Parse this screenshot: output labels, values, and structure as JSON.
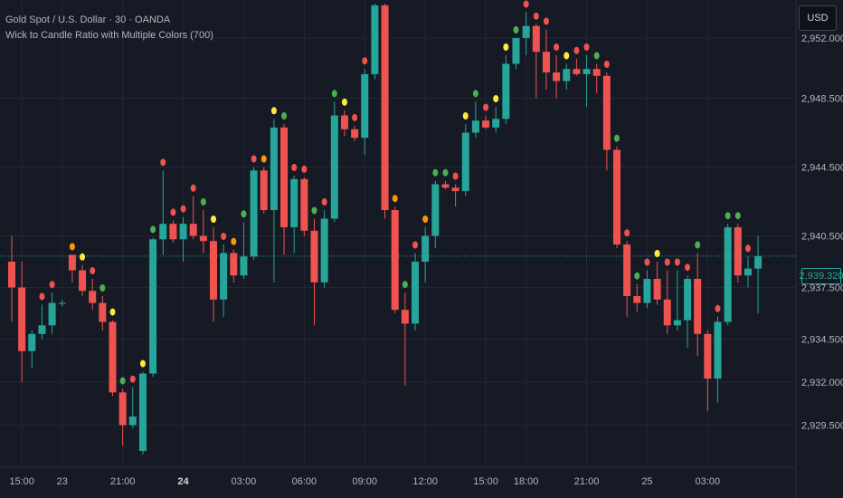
{
  "header": {
    "symbol_line": "Gold Spot / U.S. Dollar · 30 · OANDA",
    "indicator_line": "Wick to Candle Ratio with Multiple Colors (700)"
  },
  "currency_button": "USD",
  "last_price": "2,939.320",
  "colors": {
    "background": "#161a25",
    "grid": "#232734",
    "bull": "#26a69a",
    "bear": "#ef5350",
    "dot_green": "#4caf50",
    "dot_yellow": "#ffeb3b",
    "dot_orange": "#ff9800",
    "dot_red": "#ef5350",
    "axis_text": "#b2b5be"
  },
  "chart_data": {
    "type": "candlestick",
    "instrument": "Gold Spot / U.S. Dollar",
    "timeframe": "30",
    "source": "OANDA",
    "y_axis": {
      "ticks": [
        2929.5,
        2932.0,
        2934.5,
        2937.5,
        2940.5,
        2944.5,
        2948.5,
        2952.0
      ],
      "tick_labels": [
        "2,929.500",
        "2,932.000",
        "2,934.500",
        "2,937.500",
        "2,940.500",
        "2,944.500",
        "2,948.500",
        "2,952.000"
      ],
      "range": [
        2928.0,
        2954.0
      ]
    },
    "x_axis": {
      "labels": [
        {
          "text": "15:00",
          "bar": 1,
          "bold": false
        },
        {
          "text": "23",
          "bar": 5,
          "bold": false
        },
        {
          "text": "21:00",
          "bar": 11,
          "bold": false
        },
        {
          "text": "24",
          "bar": 17,
          "bold": true
        },
        {
          "text": "03:00",
          "bar": 23,
          "bold": false
        },
        {
          "text": "06:00",
          "bar": 29,
          "bold": false
        },
        {
          "text": "09:00",
          "bar": 35,
          "bold": false
        },
        {
          "text": "12:00",
          "bar": 41,
          "bold": false
        },
        {
          "text": "15:00",
          "bar": 47,
          "bold": false
        },
        {
          "text": "18:00",
          "bar": 51,
          "bold": false
        },
        {
          "text": "21:00",
          "bar": 57,
          "bold": false
        },
        {
          "text": "25",
          "bar": 63,
          "bold": false
        },
        {
          "text": "03:00",
          "bar": 69,
          "bold": false
        }
      ]
    },
    "last_price": 2939.32,
    "candles": [
      {
        "o": 2939.0,
        "h": 2940.5,
        "l": 2935.5,
        "c": 2937.5,
        "dot": "none"
      },
      {
        "o": 2937.5,
        "h": 2939.0,
        "l": 2932.0,
        "c": 2933.8,
        "dot": "none"
      },
      {
        "o": 2933.8,
        "h": 2935.0,
        "l": 2932.8,
        "c": 2934.8,
        "dot": "none"
      },
      {
        "o": 2934.8,
        "h": 2936.5,
        "l": 2934.5,
        "c": 2935.3,
        "dot": "red"
      },
      {
        "o": 2935.3,
        "h": 2937.2,
        "l": 2934.8,
        "c": 2936.6,
        "dot": "red"
      },
      {
        "o": 2936.6,
        "h": 2936.8,
        "l": 2936.4,
        "c": 2936.6,
        "dot": "none"
      },
      {
        "o": 2939.4,
        "h": 2939.4,
        "l": 2937.8,
        "c": 2938.5,
        "dot": "orange"
      },
      {
        "o": 2938.5,
        "h": 2938.8,
        "l": 2937.0,
        "c": 2937.3,
        "dot": "yellow"
      },
      {
        "o": 2937.3,
        "h": 2938.0,
        "l": 2936.2,
        "c": 2936.6,
        "dot": "red"
      },
      {
        "o": 2936.6,
        "h": 2937.0,
        "l": 2935.0,
        "c": 2935.5,
        "dot": "green"
      },
      {
        "o": 2935.5,
        "h": 2935.6,
        "l": 2931.2,
        "c": 2931.4,
        "dot": "yellow"
      },
      {
        "o": 2931.4,
        "h": 2931.6,
        "l": 2928.3,
        "c": 2929.5,
        "dot": "green"
      },
      {
        "o": 2929.5,
        "h": 2931.7,
        "l": 2929.3,
        "c": 2930.0,
        "dot": "red"
      },
      {
        "o": 2928.0,
        "h": 2932.6,
        "l": 2927.8,
        "c": 2932.5,
        "dot": "yellow"
      },
      {
        "o": 2932.5,
        "h": 2940.4,
        "l": 2932.3,
        "c": 2940.3,
        "dot": "green"
      },
      {
        "o": 2940.3,
        "h": 2944.3,
        "l": 2939.4,
        "c": 2941.2,
        "dot": "red"
      },
      {
        "o": 2941.2,
        "h": 2941.4,
        "l": 2940.1,
        "c": 2940.3,
        "dot": "red"
      },
      {
        "o": 2940.3,
        "h": 2941.6,
        "l": 2939.0,
        "c": 2941.2,
        "dot": "red"
      },
      {
        "o": 2941.2,
        "h": 2942.8,
        "l": 2940.3,
        "c": 2940.5,
        "dot": "red"
      },
      {
        "o": 2940.5,
        "h": 2942.0,
        "l": 2939.5,
        "c": 2940.2,
        "dot": "green"
      },
      {
        "o": 2940.2,
        "h": 2941.0,
        "l": 2935.5,
        "c": 2936.8,
        "dot": "yellow"
      },
      {
        "o": 2936.8,
        "h": 2940.0,
        "l": 2935.8,
        "c": 2939.5,
        "dot": "red"
      },
      {
        "o": 2939.5,
        "h": 2939.7,
        "l": 2937.8,
        "c": 2938.2,
        "dot": "orange"
      },
      {
        "o": 2938.2,
        "h": 2941.3,
        "l": 2938.0,
        "c": 2939.3,
        "dot": "green"
      },
      {
        "o": 2939.3,
        "h": 2944.5,
        "l": 2939.1,
        "c": 2944.3,
        "dot": "red"
      },
      {
        "o": 2944.3,
        "h": 2944.5,
        "l": 2941.8,
        "c": 2942.0,
        "dot": "orange"
      },
      {
        "o": 2942.0,
        "h": 2947.3,
        "l": 2937.8,
        "c": 2946.8,
        "dot": "yellow"
      },
      {
        "o": 2946.8,
        "h": 2947.0,
        "l": 2939.4,
        "c": 2941.0,
        "dot": "green"
      },
      {
        "o": 2941.0,
        "h": 2944.0,
        "l": 2939.5,
        "c": 2943.8,
        "dot": "red"
      },
      {
        "o": 2943.8,
        "h": 2943.9,
        "l": 2940.5,
        "c": 2940.8,
        "dot": "red"
      },
      {
        "o": 2940.8,
        "h": 2941.5,
        "l": 2935.3,
        "c": 2937.8,
        "dot": "green"
      },
      {
        "o": 2937.8,
        "h": 2942.0,
        "l": 2937.5,
        "c": 2941.5,
        "dot": "red"
      },
      {
        "o": 2941.5,
        "h": 2948.3,
        "l": 2941.3,
        "c": 2947.5,
        "dot": "green"
      },
      {
        "o": 2947.5,
        "h": 2947.8,
        "l": 2946.3,
        "c": 2946.7,
        "dot": "yellow"
      },
      {
        "o": 2946.7,
        "h": 2946.9,
        "l": 2946.0,
        "c": 2946.2,
        "dot": "red"
      },
      {
        "o": 2946.2,
        "h": 2950.2,
        "l": 2945.2,
        "c": 2949.9,
        "dot": "red"
      },
      {
        "o": 2949.9,
        "h": 2954.0,
        "l": 2949.6,
        "c": 2953.9,
        "dot": "yellow"
      },
      {
        "o": 2953.9,
        "h": 2954.0,
        "l": 2941.5,
        "c": 2942.0,
        "dot": "none"
      },
      {
        "o": 2942.0,
        "h": 2942.2,
        "l": 2936.0,
        "c": 2936.2,
        "dot": "orange"
      },
      {
        "o": 2936.2,
        "h": 2937.2,
        "l": 2931.8,
        "c": 2935.4,
        "dot": "green"
      },
      {
        "o": 2935.4,
        "h": 2939.5,
        "l": 2935.0,
        "c": 2939.0,
        "dot": "red"
      },
      {
        "o": 2939.0,
        "h": 2941.0,
        "l": 2937.8,
        "c": 2940.5,
        "dot": "orange"
      },
      {
        "o": 2940.5,
        "h": 2943.7,
        "l": 2939.8,
        "c": 2943.5,
        "dot": "green"
      },
      {
        "o": 2943.5,
        "h": 2943.7,
        "l": 2943.2,
        "c": 2943.3,
        "dot": "green"
      },
      {
        "o": 2943.3,
        "h": 2943.5,
        "l": 2942.2,
        "c": 2943.1,
        "dot": "red"
      },
      {
        "o": 2943.1,
        "h": 2947.0,
        "l": 2942.8,
        "c": 2946.5,
        "dot": "yellow"
      },
      {
        "o": 2946.5,
        "h": 2948.3,
        "l": 2946.2,
        "c": 2947.2,
        "dot": "green"
      },
      {
        "o": 2947.2,
        "h": 2947.5,
        "l": 2946.7,
        "c": 2946.8,
        "dot": "red"
      },
      {
        "o": 2946.8,
        "h": 2948.0,
        "l": 2946.5,
        "c": 2947.3,
        "dot": "yellow"
      },
      {
        "o": 2947.3,
        "h": 2951.0,
        "l": 2947.0,
        "c": 2950.5,
        "dot": "yellow"
      },
      {
        "o": 2950.5,
        "h": 2952.0,
        "l": 2950.2,
        "c": 2952.0,
        "dot": "green"
      },
      {
        "o": 2952.0,
        "h": 2953.5,
        "l": 2951.0,
        "c": 2952.7,
        "dot": "red"
      },
      {
        "o": 2952.7,
        "h": 2952.8,
        "l": 2948.5,
        "c": 2951.2,
        "dot": "red"
      },
      {
        "o": 2951.2,
        "h": 2952.5,
        "l": 2949.0,
        "c": 2950.0,
        "dot": "red"
      },
      {
        "o": 2950.0,
        "h": 2951.0,
        "l": 2948.5,
        "c": 2949.5,
        "dot": "red"
      },
      {
        "o": 2949.5,
        "h": 2950.5,
        "l": 2949.0,
        "c": 2950.2,
        "dot": "yellow"
      },
      {
        "o": 2950.2,
        "h": 2950.8,
        "l": 2949.8,
        "c": 2949.9,
        "dot": "red"
      },
      {
        "o": 2949.9,
        "h": 2951.0,
        "l": 2948.0,
        "c": 2950.2,
        "dot": "red"
      },
      {
        "o": 2950.2,
        "h": 2950.5,
        "l": 2948.8,
        "c": 2949.8,
        "dot": "green"
      },
      {
        "o": 2949.8,
        "h": 2950.0,
        "l": 2944.3,
        "c": 2945.5,
        "dot": "red"
      },
      {
        "o": 2945.5,
        "h": 2945.7,
        "l": 2939.8,
        "c": 2940.0,
        "dot": "green"
      },
      {
        "o": 2940.0,
        "h": 2940.2,
        "l": 2935.8,
        "c": 2937.0,
        "dot": "red"
      },
      {
        "o": 2937.0,
        "h": 2937.7,
        "l": 2936.1,
        "c": 2936.6,
        "dot": "green"
      },
      {
        "o": 2936.6,
        "h": 2938.5,
        "l": 2936.3,
        "c": 2938.0,
        "dot": "red"
      },
      {
        "o": 2938.0,
        "h": 2939.0,
        "l": 2936.5,
        "c": 2936.8,
        "dot": "yellow"
      },
      {
        "o": 2936.8,
        "h": 2938.5,
        "l": 2934.8,
        "c": 2935.3,
        "dot": "red"
      },
      {
        "o": 2935.3,
        "h": 2938.5,
        "l": 2935.0,
        "c": 2935.6,
        "dot": "red"
      },
      {
        "o": 2935.6,
        "h": 2938.2,
        "l": 2934.0,
        "c": 2938.0,
        "dot": "red"
      },
      {
        "o": 2938.0,
        "h": 2939.5,
        "l": 2933.5,
        "c": 2934.8,
        "dot": "green"
      },
      {
        "o": 2934.8,
        "h": 2935.0,
        "l": 2930.3,
        "c": 2932.2,
        "dot": "none"
      },
      {
        "o": 2932.2,
        "h": 2935.8,
        "l": 2930.8,
        "c": 2935.5,
        "dot": "red"
      },
      {
        "o": 2935.5,
        "h": 2941.2,
        "l": 2935.3,
        "c": 2941.0,
        "dot": "green"
      },
      {
        "o": 2941.0,
        "h": 2941.2,
        "l": 2937.8,
        "c": 2938.2,
        "dot": "green"
      },
      {
        "o": 2938.2,
        "h": 2939.3,
        "l": 2937.5,
        "c": 2938.6,
        "dot": "red"
      },
      {
        "o": 2938.6,
        "h": 2940.5,
        "l": 2936.0,
        "c": 2939.32,
        "dot": "none"
      }
    ]
  }
}
